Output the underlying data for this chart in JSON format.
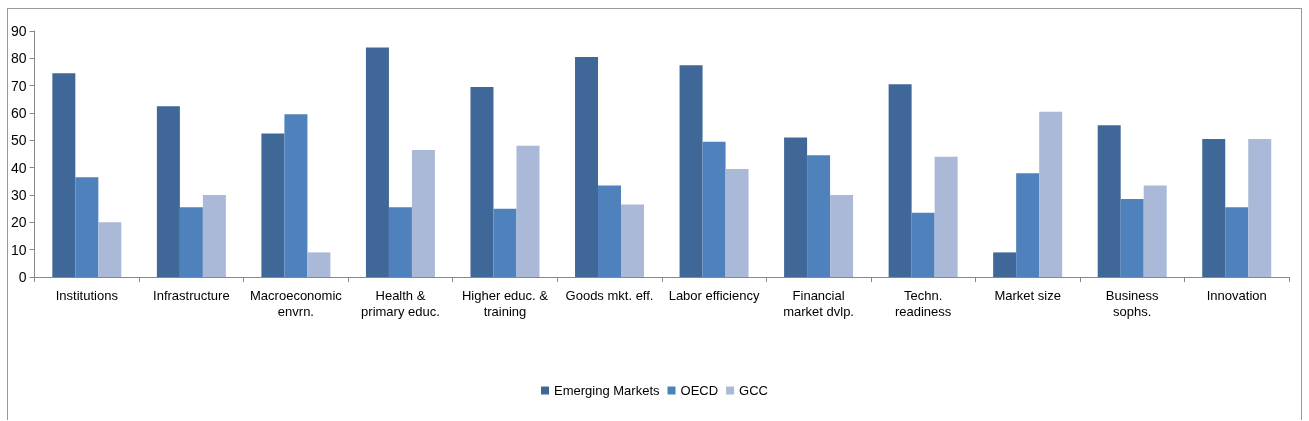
{
  "chart_data": {
    "type": "bar",
    "categories": [
      "Institutions",
      "Infrastructure",
      "Macroeconomic\nenvrn.",
      "Health &\nprimary educ.",
      "Higher educ. &\ntraining",
      "Goods mkt. eff.",
      "Labor efficiency",
      "Financial\nmarket dvlp.",
      "Techn.\nreadiness",
      "Market size",
      "Business\nsophs.",
      "Innovation"
    ],
    "series": [
      {
        "name": "Emerging Markets",
        "color": "#3f6899",
        "values": [
          74.5,
          62.5,
          52.5,
          84,
          69.5,
          80.5,
          77.5,
          51,
          70.5,
          9,
          55.5,
          50.5
        ]
      },
      {
        "name": "OECD",
        "color": "#4f81bd",
        "values": [
          36.5,
          25.5,
          59.5,
          25.5,
          25,
          33.5,
          49.5,
          44.5,
          23.5,
          38,
          28.5,
          25.5
        ]
      },
      {
        "name": "GCC",
        "color": "#aab9d7",
        "values": [
          20,
          30,
          9,
          46.5,
          48,
          26.5,
          39.5,
          30,
          44,
          60.5,
          33.5,
          50.5
        ]
      }
    ],
    "ylim": [
      0,
      90
    ],
    "yticks": [
      0,
      10,
      20,
      30,
      40,
      50,
      60,
      70,
      80,
      90
    ],
    "grid": false,
    "legend": "bottom"
  }
}
